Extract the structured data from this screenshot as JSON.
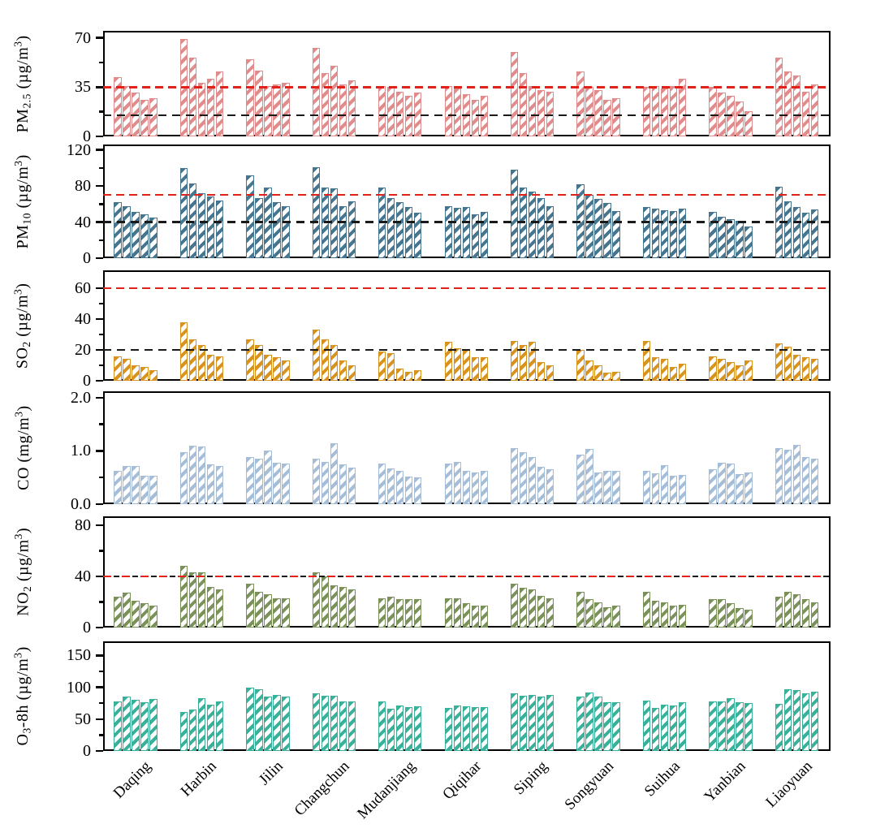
{
  "figure": {
    "background": "#ffffff",
    "axis_color": "#000000",
    "red_dash_color": "#e32119",
    "black_dash_color": "#1a1a1a"
  },
  "cities": [
    "Daqing",
    "Harbin",
    "Jilin",
    "Changchun",
    "Mudanjiang",
    "Qiqihar",
    "Siping",
    "Songyuan",
    "Suihua",
    "Yanbian",
    "Liaoyuan"
  ],
  "bars_per_group": 5,
  "chart_data": [
    {
      "type": "bar",
      "id": "pm25",
      "ylabel_text": "PM2.5 (µg/m3)",
      "ylabel_parts": [
        {
          "text": "PM",
          "style": "normal"
        },
        {
          "text": "2.5",
          "style": "sub"
        },
        {
          "text": " (µg/m",
          "style": "normal"
        },
        {
          "text": "3",
          "style": "sup"
        },
        {
          "text": ")",
          "style": "normal"
        }
      ],
      "color": "#e08c8c",
      "ylim": [
        0,
        75
      ],
      "yticks": [
        {
          "v": 0,
          "label": "0"
        },
        {
          "v": 35,
          "label": "35"
        },
        {
          "v": 70,
          "label": "70"
        }
      ],
      "yticks_minor": [
        17.5,
        52.5
      ],
      "ref_red": 35,
      "ref_black": 15,
      "ref_combined": false,
      "values": [
        [
          42,
          36,
          31,
          26,
          27
        ],
        [
          69,
          56,
          38,
          41,
          46
        ],
        [
          55,
          47,
          36,
          37,
          38
        ],
        [
          63,
          45,
          50,
          37,
          40
        ],
        [
          36,
          35,
          32,
          29,
          31
        ],
        [
          36,
          34,
          30,
          26,
          29
        ],
        [
          60,
          45,
          36,
          33,
          32
        ],
        [
          46,
          35,
          33,
          26,
          27
        ],
        [
          35,
          36,
          34,
          36,
          41
        ],
        [
          35,
          31,
          29,
          25,
          18
        ],
        [
          56,
          46,
          43,
          32,
          37
        ]
      ]
    },
    {
      "type": "bar",
      "id": "pm10",
      "ylabel_text": "PM10 (µg/m3)",
      "ylabel_parts": [
        {
          "text": "PM",
          "style": "normal"
        },
        {
          "text": "10",
          "style": "sub"
        },
        {
          "text": " (µg/m",
          "style": "normal"
        },
        {
          "text": "3",
          "style": "sup"
        },
        {
          "text": ")",
          "style": "normal"
        }
      ],
      "color": "#45758f",
      "ylim": [
        0,
        126
      ],
      "yticks": [
        {
          "v": 0,
          "label": "0"
        },
        {
          "v": 40,
          "label": "40"
        },
        {
          "v": 80,
          "label": "80"
        },
        {
          "v": 120,
          "label": "120"
        }
      ],
      "yticks_minor": [
        20,
        60,
        100
      ],
      "ref_red": 70,
      "ref_black": 40,
      "ref_combined": false,
      "values": [
        [
          62,
          58,
          51,
          49,
          45
        ],
        [
          100,
          83,
          72,
          68,
          64
        ],
        [
          92,
          67,
          78,
          62,
          58
        ],
        [
          101,
          78,
          77,
          58,
          63
        ],
        [
          78,
          67,
          62,
          57,
          50
        ],
        [
          58,
          56,
          57,
          49,
          51
        ],
        [
          98,
          78,
          74,
          67,
          58
        ],
        [
          82,
          70,
          66,
          61,
          52
        ],
        [
          57,
          55,
          53,
          52,
          55
        ],
        [
          51,
          46,
          43,
          41,
          35
        ],
        [
          79,
          63,
          57,
          50,
          54
        ]
      ]
    },
    {
      "type": "bar",
      "id": "so2",
      "ylabel_text": "SO2 (µg/m3)",
      "ylabel_parts": [
        {
          "text": "SO",
          "style": "normal"
        },
        {
          "text": "2",
          "style": "sub"
        },
        {
          "text": " (µg/m",
          "style": "normal"
        },
        {
          "text": "3",
          "style": "sup"
        },
        {
          "text": ")",
          "style": "normal"
        }
      ],
      "color": "#d8931f",
      "ylim": [
        0,
        71.5
      ],
      "yticks": [
        {
          "v": 0,
          "label": "0"
        },
        {
          "v": 20,
          "label": "20"
        },
        {
          "v": 40,
          "label": "40"
        },
        {
          "v": 60,
          "label": "60"
        }
      ],
      "yticks_minor": [
        10,
        30,
        50
      ],
      "ref_red": 60,
      "ref_black": 20,
      "ref_combined": false,
      "values": [
        [
          16,
          14,
          10,
          9,
          7
        ],
        [
          38,
          27,
          23,
          17,
          16
        ],
        [
          27,
          23,
          17,
          15,
          13
        ],
        [
          33,
          27,
          23,
          13,
          10
        ],
        [
          19,
          18,
          8,
          6,
          7
        ],
        [
          25,
          21,
          20,
          15,
          15
        ],
        [
          26,
          23,
          25,
          12,
          10
        ],
        [
          20,
          13,
          10,
          5,
          6
        ],
        [
          26,
          15,
          14,
          9,
          11
        ],
        [
          16,
          14,
          12,
          10,
          13
        ],
        [
          24,
          22,
          17,
          15,
          14
        ]
      ]
    },
    {
      "type": "bar",
      "id": "co",
      "ylabel_text": "CO (mg/m3)",
      "ylabel_parts": [
        {
          "text": "CO (mg/m",
          "style": "normal"
        },
        {
          "text": "3",
          "style": "sup"
        },
        {
          "text": ")",
          "style": "normal"
        }
      ],
      "color": "#a6bdd7",
      "ylim": [
        0,
        2.12
      ],
      "yticks": [
        {
          "v": 0,
          "label": "0.0"
        },
        {
          "v": 1,
          "label": "1.0"
        },
        {
          "v": 2,
          "label": "2.0"
        }
      ],
      "yticks_minor": [
        0.5,
        1.5
      ],
      "ref_red": null,
      "ref_black": null,
      "ref_combined": false,
      "values": [
        [
          0.63,
          0.72,
          0.71,
          0.54,
          0.53
        ],
        [
          0.97,
          1.1,
          1.08,
          0.75,
          0.72
        ],
        [
          0.89,
          0.85,
          1.01,
          0.78,
          0.77
        ],
        [
          0.85,
          0.8,
          1.15,
          0.74,
          0.69
        ],
        [
          0.77,
          0.67,
          0.62,
          0.52,
          0.5
        ],
        [
          0.76,
          0.79,
          0.62,
          0.6,
          0.63
        ],
        [
          1.05,
          0.98,
          0.88,
          0.7,
          0.65
        ],
        [
          0.93,
          1.03,
          0.6,
          0.62,
          0.63
        ],
        [
          0.62,
          0.58,
          0.73,
          0.53,
          0.55
        ],
        [
          0.66,
          0.78,
          0.76,
          0.56,
          0.6
        ],
        [
          1.05,
          1.02,
          1.12,
          0.88,
          0.86
        ]
      ]
    },
    {
      "type": "bar",
      "id": "no2",
      "ylabel_text": "NO2 (µg/m3)",
      "ylabel_parts": [
        {
          "text": "NO",
          "style": "normal"
        },
        {
          "text": "2",
          "style": "sub"
        },
        {
          "text": " (µg/m",
          "style": "normal"
        },
        {
          "text": "3",
          "style": "sup"
        },
        {
          "text": ")",
          "style": "normal"
        }
      ],
      "color": "#7a9159",
      "ylim": [
        0,
        87
      ],
      "yticks": [
        {
          "v": 0,
          "label": "0"
        },
        {
          "v": 40,
          "label": "40"
        },
        {
          "v": 80,
          "label": "80"
        }
      ],
      "yticks_minor": [
        20,
        60
      ],
      "ref_red": 40,
      "ref_black": 40,
      "ref_combined": true,
      "values": [
        [
          24,
          27,
          21,
          19,
          17
        ],
        [
          48,
          43,
          43,
          32,
          30
        ],
        [
          34,
          28,
          26,
          23,
          23
        ],
        [
          43,
          40,
          33,
          32,
          30
        ],
        [
          23,
          24,
          22,
          22,
          22
        ],
        [
          23,
          23,
          19,
          17,
          17
        ],
        [
          34,
          31,
          30,
          25,
          23
        ],
        [
          28,
          22,
          20,
          16,
          17
        ],
        [
          28,
          21,
          20,
          17,
          18
        ],
        [
          22,
          22,
          19,
          15,
          14
        ],
        [
          24,
          28,
          26,
          22,
          20
        ]
      ]
    },
    {
      "type": "bar",
      "id": "o3",
      "ylabel_text": "O3-8h (µg/m3)",
      "ylabel_parts": [
        {
          "text": "O",
          "style": "normal"
        },
        {
          "text": "3",
          "style": "sub"
        },
        {
          "text": "-8h (µg/m",
          "style": "normal"
        },
        {
          "text": "3",
          "style": "sup"
        },
        {
          "text": ")",
          "style": "normal"
        }
      ],
      "color": "#38b09a",
      "ylim": [
        0,
        172
      ],
      "yticks": [
        {
          "v": 0,
          "label": "0"
        },
        {
          "v": 50,
          "label": "50"
        },
        {
          "v": 100,
          "label": "100"
        },
        {
          "v": 150,
          "label": "150"
        }
      ],
      "yticks_minor": [
        25,
        75,
        125
      ],
      "ref_red": null,
      "ref_black": null,
      "ref_combined": false,
      "values": [
        [
          78,
          86,
          80,
          76,
          82
        ],
        [
          61,
          65,
          83,
          73,
          78
        ],
        [
          99,
          97,
          85,
          88,
          86
        ],
        [
          91,
          87,
          87,
          78,
          78
        ],
        [
          78,
          66,
          71,
          69,
          70
        ],
        [
          67,
          71,
          70,
          69,
          69
        ],
        [
          90,
          87,
          88,
          86,
          88
        ],
        [
          85,
          92,
          86,
          77,
          77
        ],
        [
          79,
          68,
          72,
          71,
          76
        ],
        [
          78,
          78,
          83,
          77,
          75
        ],
        [
          74,
          97,
          95,
          90,
          93
        ]
      ]
    }
  ]
}
